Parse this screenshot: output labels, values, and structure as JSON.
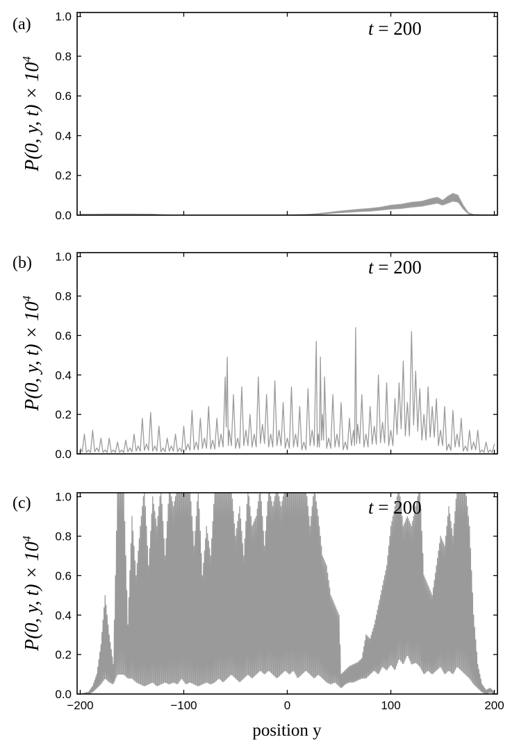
{
  "chart_data": [
    {
      "type": "line",
      "panel_label": "(a)",
      "annotation": {
        "lhs": "t",
        "op": " = ",
        "rhs": "200"
      },
      "ylabel": {
        "main": "P(0, y, t) × 10",
        "exponent": "4"
      },
      "xlabel": "",
      "xlim": [
        -203,
        203
      ],
      "ylim": [
        0,
        1.02
      ],
      "xticks": [
        -200,
        -100,
        0,
        100,
        200
      ],
      "yticks": [
        0.0,
        0.2,
        0.4,
        0.6,
        0.8,
        1.0
      ],
      "ytick_labels": [
        "0.0",
        "0.2",
        "0.4",
        "0.6",
        "0.8",
        "1.0"
      ],
      "show_xtick_labels": false,
      "series": [
        {
          "color": "#9a9a9a",
          "oscillation": "alternating",
          "x": [
            -200,
            -190,
            -170,
            -150,
            -130,
            -120,
            -110,
            -90,
            -60,
            -30,
            0,
            20,
            30,
            40,
            50,
            60,
            70,
            80,
            90,
            100,
            110,
            120,
            130,
            140,
            145,
            150,
            155,
            160,
            165,
            170,
            175,
            180,
            190,
            200
          ],
          "peak": [
            0.005,
            0.005,
            0.006,
            0.006,
            0.005,
            0.002,
            0.0,
            0.0,
            0.0,
            0.0,
            0.0,
            0.004,
            0.008,
            0.014,
            0.02,
            0.025,
            0.03,
            0.034,
            0.04,
            0.05,
            0.055,
            0.065,
            0.07,
            0.085,
            0.09,
            0.075,
            0.095,
            0.11,
            0.1,
            0.05,
            0.012,
            0.003,
            0.002,
            0.001
          ],
          "trough": [
            0.002,
            0.002,
            0.003,
            0.003,
            0.002,
            0.001,
            0.0,
            0.0,
            0.0,
            0.0,
            0.0,
            0.002,
            0.004,
            0.008,
            0.012,
            0.015,
            0.018,
            0.02,
            0.025,
            0.03,
            0.033,
            0.04,
            0.045,
            0.055,
            0.06,
            0.05,
            0.06,
            0.07,
            0.065,
            0.03,
            0.006,
            0.001,
            0.001,
            0.0
          ]
        }
      ]
    },
    {
      "type": "line",
      "panel_label": "(b)",
      "annotation": {
        "lhs": "t",
        "op": " = ",
        "rhs": "200"
      },
      "ylabel": {
        "main": "P(0, y, t) × 10",
        "exponent": "4"
      },
      "xlabel": "",
      "xlim": [
        -203,
        203
      ],
      "ylim": [
        0,
        1.02
      ],
      "xticks": [
        -200,
        -100,
        0,
        100,
        200
      ],
      "yticks": [
        0.0,
        0.2,
        0.4,
        0.6,
        0.8,
        1.0
      ],
      "ytick_labels": [
        "0.0",
        "0.2",
        "0.4",
        "0.6",
        "0.8",
        "1.0"
      ],
      "show_xtick_labels": false,
      "series": [
        {
          "color": "#9a9a9a",
          "oscillation": "irregular",
          "x": [
            -200,
            -196,
            -192,
            -188,
            -184,
            -180,
            -176,
            -172,
            -168,
            -164,
            -160,
            -156,
            -152,
            -148,
            -144,
            -140,
            -136,
            -132,
            -128,
            -124,
            -120,
            -116,
            -112,
            -108,
            -104,
            -100,
            -96,
            -92,
            -88,
            -84,
            -80,
            -76,
            -72,
            -68,
            -64,
            -60,
            -58,
            -56,
            -52,
            -48,
            -44,
            -40,
            -36,
            -32,
            -28,
            -24,
            -20,
            -16,
            -12,
            -8,
            -4,
            0,
            4,
            8,
            12,
            16,
            20,
            24,
            28,
            30,
            32,
            34,
            36,
            40,
            44,
            48,
            52,
            56,
            60,
            64,
            66,
            68,
            72,
            76,
            80,
            84,
            88,
            92,
            96,
            100,
            104,
            108,
            112,
            116,
            120,
            124,
            128,
            132,
            136,
            140,
            144,
            148,
            152,
            156,
            160,
            164,
            168,
            172,
            176,
            180,
            184,
            188,
            192,
            196,
            200
          ],
          "y": [
            0.03,
            0.1,
            0.02,
            0.12,
            0.03,
            0.08,
            0.02,
            0.08,
            0.02,
            0.06,
            0.02,
            0.07,
            0.03,
            0.1,
            0.04,
            0.18,
            0.05,
            0.21,
            0.04,
            0.14,
            0.03,
            0.08,
            0.04,
            0.1,
            0.03,
            0.14,
            0.05,
            0.22,
            0.06,
            0.18,
            0.08,
            0.24,
            0.07,
            0.18,
            0.1,
            0.39,
            0.49,
            0.12,
            0.3,
            0.08,
            0.34,
            0.12,
            0.2,
            0.1,
            0.39,
            0.15,
            0.3,
            0.1,
            0.37,
            0.12,
            0.26,
            0.08,
            0.34,
            0.1,
            0.24,
            0.06,
            0.33,
            0.12,
            0.57,
            0.1,
            0.49,
            0.2,
            0.39,
            0.08,
            0.3,
            0.1,
            0.26,
            0.06,
            0.18,
            0.12,
            0.64,
            0.15,
            0.3,
            0.1,
            0.24,
            0.14,
            0.4,
            0.16,
            0.36,
            0.12,
            0.28,
            0.36,
            0.47,
            0.26,
            0.62,
            0.42,
            0.33,
            0.2,
            0.34,
            0.24,
            0.28,
            0.12,
            0.24,
            0.05,
            0.22,
            0.1,
            0.18,
            0.04,
            0.12,
            0.06,
            0.12,
            0.02,
            0.06,
            0.02,
            0.05
          ]
        }
      ]
    },
    {
      "type": "line",
      "panel_label": "(c)",
      "annotation": {
        "lhs": "t",
        "op": " = ",
        "rhs": "200"
      },
      "ylabel": {
        "main": "P(0, y, t) × 10",
        "exponent": "4"
      },
      "xlabel": "position y",
      "xlim": [
        -203,
        203
      ],
      "ylim": [
        0,
        1.02
      ],
      "xticks": [
        -200,
        -100,
        0,
        100,
        200
      ],
      "xtick_labels": [
        "−200",
        "−100",
        "0",
        "100",
        "200"
      ],
      "yticks": [
        0.0,
        0.2,
        0.4,
        0.6,
        0.8,
        1.0
      ],
      "ytick_labels": [
        "0.0",
        "0.2",
        "0.4",
        "0.6",
        "0.8",
        "1.0"
      ],
      "show_xtick_labels": true,
      "series": [
        {
          "color": "#9a9a9a",
          "oscillation": "alternating",
          "x": [
            -200,
            -192,
            -188,
            -184,
            -180,
            -176,
            -172,
            -168,
            -164,
            -162,
            -158,
            -154,
            -150,
            -146,
            -142,
            -138,
            -134,
            -130,
            -126,
            -122,
            -118,
            -114,
            -110,
            -106,
            -102,
            -98,
            -94,
            -90,
            -86,
            -82,
            -78,
            -74,
            -70,
            -66,
            -62,
            -58,
            -54,
            -50,
            -46,
            -42,
            -38,
            -34,
            -30,
            -26,
            -22,
            -18,
            -14,
            -10,
            -6,
            -2,
            2,
            6,
            10,
            14,
            18,
            22,
            26,
            30,
            34,
            38,
            42,
            46,
            50,
            52,
            56,
            60,
            64,
            68,
            72,
            76,
            80,
            84,
            88,
            92,
            96,
            100,
            104,
            108,
            112,
            116,
            120,
            124,
            128,
            132,
            136,
            140,
            144,
            148,
            152,
            156,
            160,
            164,
            168,
            172,
            176,
            180,
            184,
            188,
            192,
            196,
            200
          ],
          "peak": [
            0.0,
            0.01,
            0.04,
            0.1,
            0.25,
            0.5,
            0.3,
            0.15,
            1.05,
            1.05,
            1.05,
            0.35,
            0.9,
            0.6,
            0.85,
            1.05,
            0.65,
            1.0,
            0.85,
            1.05,
            0.7,
            1.05,
            0.95,
            1.05,
            1.05,
            1.05,
            1.05,
            0.75,
            1.05,
            0.6,
            0.85,
            0.7,
            1.05,
            1.05,
            1.05,
            1.05,
            1.05,
            0.8,
            0.95,
            0.7,
            1.05,
            0.85,
            0.9,
            1.05,
            0.75,
            1.05,
            0.95,
            1.05,
            0.95,
            1.05,
            1.05,
            1.05,
            1.05,
            1.05,
            1.05,
            0.85,
            1.05,
            0.9,
            0.7,
            0.65,
            0.5,
            0.45,
            0.4,
            0.1,
            0.12,
            0.14,
            0.15,
            0.16,
            0.18,
            0.3,
            0.28,
            0.35,
            0.45,
            0.55,
            0.65,
            0.85,
            0.95,
            1.05,
            0.85,
            0.9,
            0.85,
            0.95,
            1.05,
            0.6,
            0.55,
            0.5,
            0.65,
            0.8,
            0.75,
            0.95,
            0.8,
            1.05,
            1.05,
            1.05,
            0.85,
            0.4,
            0.15,
            0.05,
            0.02,
            0.03,
            0.01
          ],
          "trough": [
            0.0,
            0.0,
            0.01,
            0.03,
            0.05,
            0.08,
            0.06,
            0.05,
            0.1,
            0.1,
            0.1,
            0.08,
            0.08,
            0.06,
            0.05,
            0.04,
            0.05,
            0.06,
            0.04,
            0.05,
            0.06,
            0.05,
            0.06,
            0.05,
            0.08,
            0.05,
            0.06,
            0.05,
            0.04,
            0.05,
            0.06,
            0.05,
            0.06,
            0.08,
            0.06,
            0.08,
            0.1,
            0.08,
            0.06,
            0.08,
            0.1,
            0.08,
            0.1,
            0.12,
            0.1,
            0.12,
            0.1,
            0.08,
            0.1,
            0.12,
            0.1,
            0.12,
            0.08,
            0.1,
            0.12,
            0.1,
            0.08,
            0.1,
            0.08,
            0.06,
            0.05,
            0.06,
            0.04,
            0.03,
            0.05,
            0.06,
            0.06,
            0.07,
            0.08,
            0.08,
            0.1,
            0.12,
            0.1,
            0.14,
            0.12,
            0.15,
            0.12,
            0.18,
            0.15,
            0.2,
            0.15,
            0.16,
            0.14,
            0.1,
            0.12,
            0.1,
            0.12,
            0.14,
            0.1,
            0.12,
            0.1,
            0.14,
            0.12,
            0.1,
            0.08,
            0.05,
            0.03,
            0.01,
            0.0,
            0.01,
            0.0
          ]
        }
      ]
    }
  ]
}
